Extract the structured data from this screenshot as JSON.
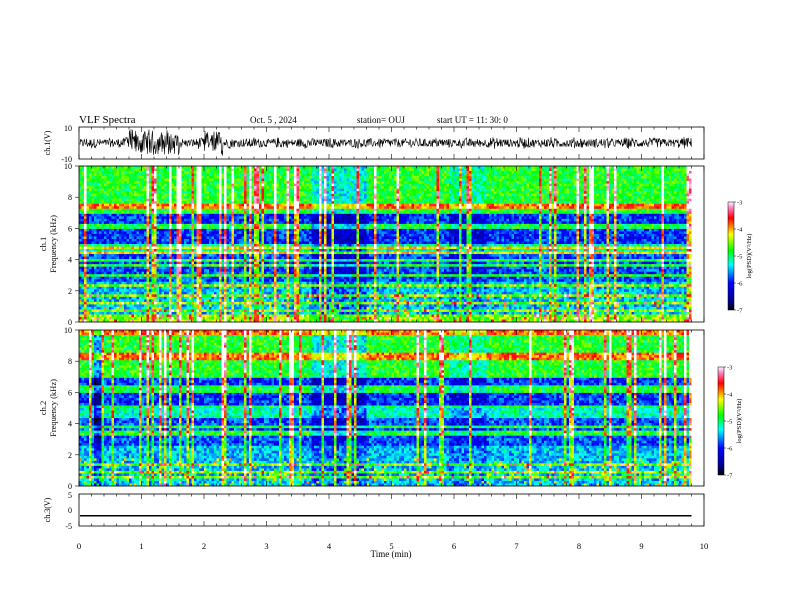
{
  "header": {
    "title": "VLF Spectra",
    "date": "Oct. 5  , 2024",
    "station": "station= OUJ",
    "start": "start  UT  =   11: 30: 0"
  },
  "chart_data": [
    {
      "type": "line",
      "panel": "ch1-waveform",
      "ylabel": "ch.1(V)",
      "ylim": [
        -10,
        10
      ],
      "xlim": [
        0,
        10
      ],
      "y_ticks": [
        "10",
        "-10"
      ],
      "description_of_signal": "dense noisy waveform, amplitude roughly ±2–3 V, bursts up to ±10 V near 0.8–1.6 min",
      "burst_regions_min": [
        [
          0.75,
          1.6
        ],
        [
          2.0,
          2.3
        ]
      ],
      "series_end_min": 9.8
    },
    {
      "type": "heatmap",
      "panel": "ch1-spectrogram",
      "ylabel": "ch.1\nFrequency  (kHz)",
      "ylim": [
        0,
        10
      ],
      "xlim": [
        0,
        10
      ],
      "y_ticks": [
        "0",
        "2",
        "4",
        "6",
        "8",
        "10"
      ],
      "colorbar": {
        "label": "log(PSD)(V²/Hz)",
        "range": [
          -7,
          -3
        ],
        "ticks": [
          "-3",
          "-4",
          "-5",
          "-6",
          "-7"
        ]
      },
      "series_end_min": 9.8
    },
    {
      "type": "heatmap",
      "panel": "ch2-spectrogram",
      "ylabel": "ch.2\nFrequency  (kHz)",
      "ylim": [
        0,
        10
      ],
      "xlim": [
        0,
        10
      ],
      "y_ticks": [
        "0",
        "2",
        "4",
        "6",
        "8",
        "10"
      ],
      "colorbar": {
        "label": "log(PSD)(V²/Hz)",
        "range": [
          -7,
          -3
        ],
        "ticks": [
          "-3",
          "-4",
          "-5",
          "-6",
          "-7"
        ]
      },
      "series_end_min": 9.8
    },
    {
      "type": "line",
      "panel": "ch3-waveform",
      "ylabel": "ch.3(V)",
      "ylim": [
        -5,
        5
      ],
      "xlim": [
        0,
        10
      ],
      "y_ticks": [
        "5",
        "0",
        "-5"
      ],
      "constant_value": -1.8,
      "series_end_min": 9.8
    }
  ],
  "x_axis": {
    "label": "Time  (min)",
    "ticks": [
      "0",
      "1",
      "2",
      "3",
      "4",
      "5",
      "6",
      "7",
      "8",
      "9",
      "10"
    ]
  },
  "colors": {
    "spectrum_low": "#000080",
    "spectrum_mid": "#00ff00",
    "spectrum_high": "#ff0000",
    "spectrum_top": "#ffffff"
  }
}
